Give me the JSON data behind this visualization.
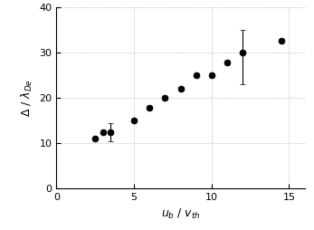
{
  "x": [
    2.5,
    3.0,
    3.5,
    5.0,
    6.0,
    7.0,
    8.0,
    9.0,
    10.0,
    11.0,
    12.0,
    14.5
  ],
  "y": [
    11.0,
    12.5,
    12.5,
    15.0,
    17.8,
    20.0,
    22.0,
    25.0,
    25.0,
    27.8,
    30.0,
    32.5
  ],
  "yerr_lo": [
    null,
    null,
    2.0,
    null,
    null,
    null,
    null,
    null,
    null,
    null,
    7.0,
    null
  ],
  "yerr_hi": [
    null,
    null,
    2.0,
    null,
    null,
    null,
    null,
    null,
    null,
    null,
    5.0,
    null
  ],
  "xlim": [
    0,
    16
  ],
  "ylim": [
    0,
    40
  ],
  "xticks": [
    0,
    5,
    10,
    15
  ],
  "yticks": [
    0,
    10,
    20,
    30,
    40
  ],
  "xlabel": "$u_b$ / $v_{th}$",
  "ylabel": "$\\Delta$ / $\\lambda_{De}$",
  "marker_color": "black",
  "marker_size": 5,
  "grid_color": "#aaaaaa",
  "bg_color": "white"
}
